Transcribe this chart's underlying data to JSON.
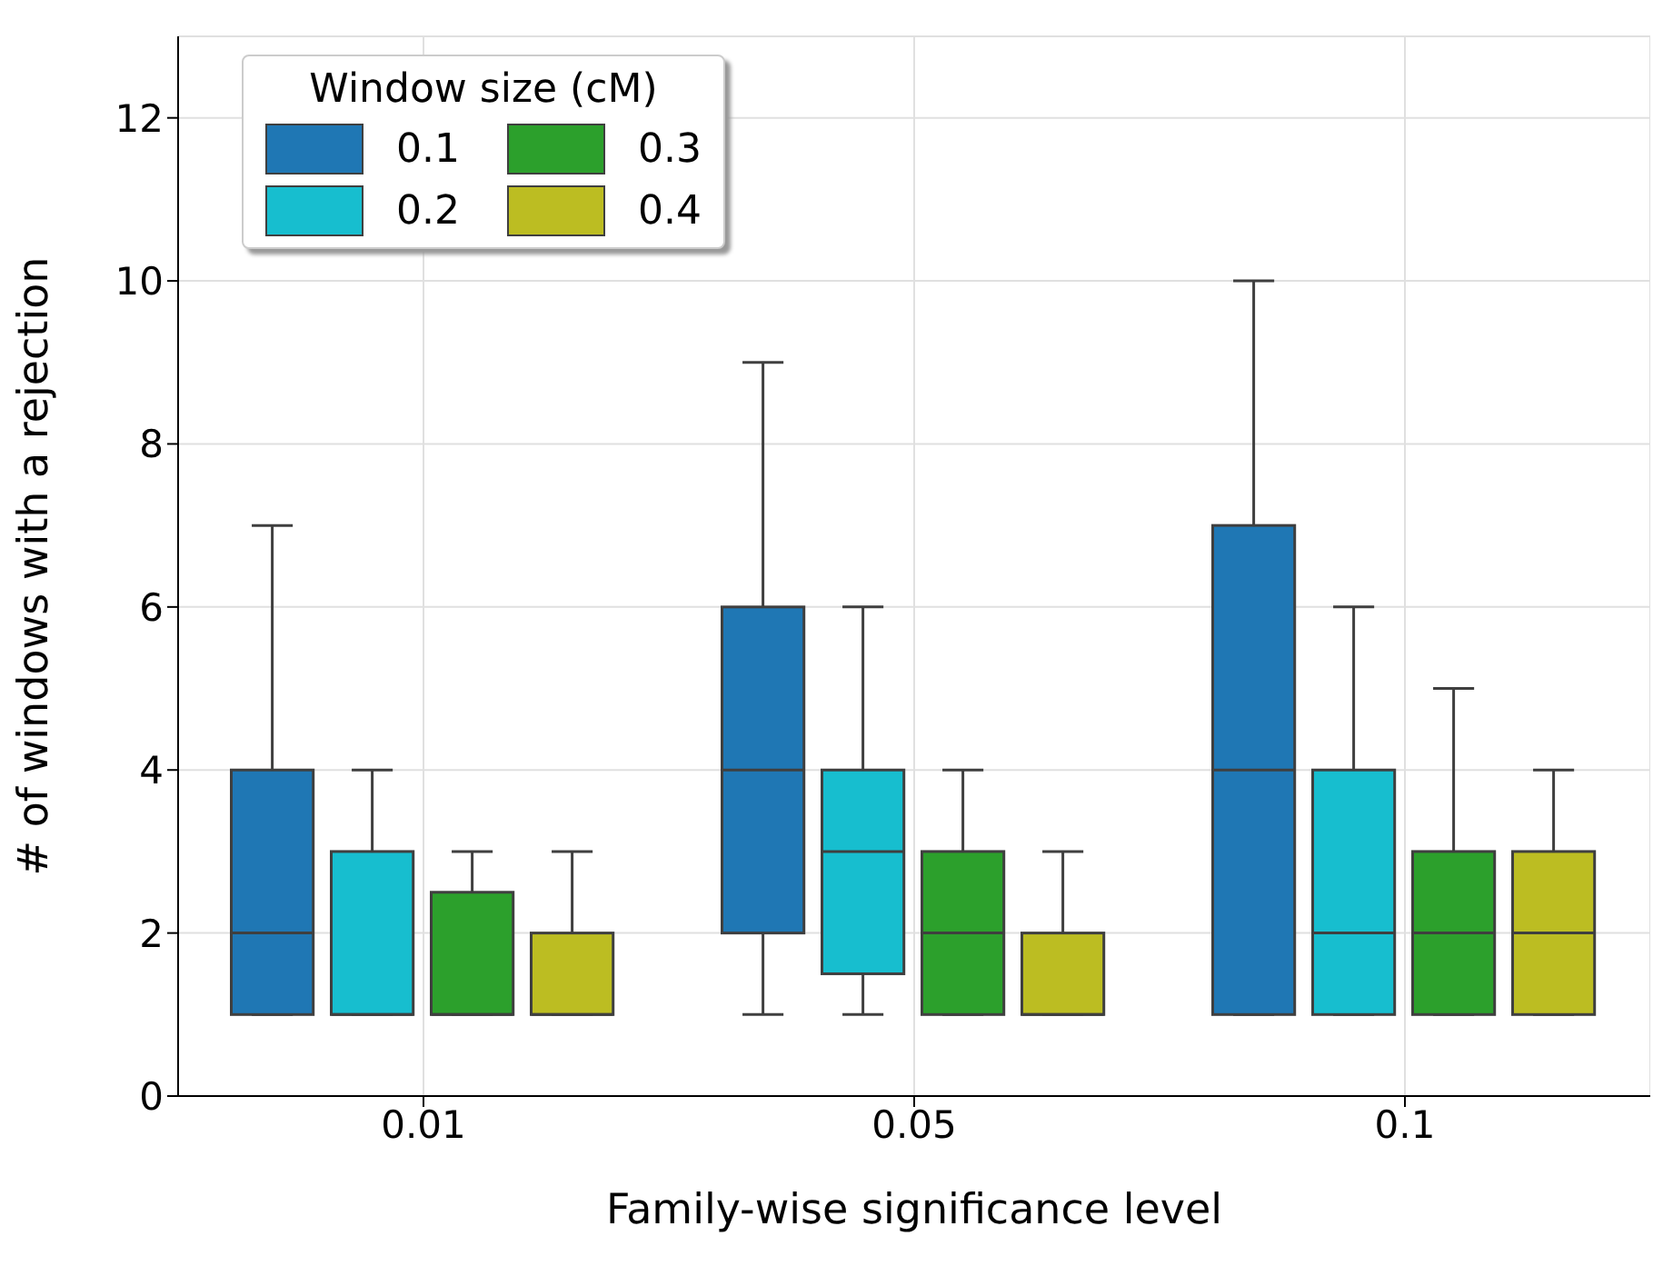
{
  "chart_data": {
    "type": "box",
    "xlabel": "Family-wise significance level",
    "ylabel": "# of windows with a rejection",
    "legend_title": "Window size (cM)",
    "categories": [
      "0.01",
      "0.05",
      "0.1"
    ],
    "series": [
      {
        "name": "0.1",
        "color": "#1f77b4",
        "boxes": [
          {
            "low": 1,
            "q1": 1,
            "median": 2,
            "q3": 4,
            "high": 7
          },
          {
            "low": 1,
            "q1": 2,
            "median": 4,
            "q3": 6,
            "high": 9
          },
          {
            "low": 1,
            "q1": 1,
            "median": 4,
            "q3": 7,
            "high": 10
          }
        ]
      },
      {
        "name": "0.2",
        "color": "#17becf",
        "boxes": [
          {
            "low": 1,
            "q1": 1,
            "median": 1,
            "q3": 3,
            "high": 4
          },
          {
            "low": 1,
            "q1": 1.5,
            "median": 3,
            "q3": 4,
            "high": 6
          },
          {
            "low": 1,
            "q1": 1,
            "median": 2,
            "q3": 4,
            "high": 6
          }
        ]
      },
      {
        "name": "0.3",
        "color": "#2ca02c",
        "boxes": [
          {
            "low": 1,
            "q1": 1,
            "median": 1,
            "q3": 2.5,
            "high": 3
          },
          {
            "low": 1,
            "q1": 1,
            "median": 2,
            "q3": 3,
            "high": 4
          },
          {
            "low": 1,
            "q1": 1,
            "median": 2,
            "q3": 3,
            "high": 5
          }
        ]
      },
      {
        "name": "0.4",
        "color": "#bcbd22",
        "boxes": [
          {
            "low": 1,
            "q1": 1,
            "median": 1,
            "q3": 2,
            "high": 3
          },
          {
            "low": 1,
            "q1": 1,
            "median": 1,
            "q3": 2,
            "high": 3
          },
          {
            "low": 1,
            "q1": 1,
            "median": 2,
            "q3": 3,
            "high": 4
          }
        ]
      }
    ],
    "ylim": [
      0,
      13
    ],
    "yticks": [
      0,
      2,
      4,
      6,
      8,
      10,
      12
    ],
    "grid": true,
    "legend": "top left"
  }
}
